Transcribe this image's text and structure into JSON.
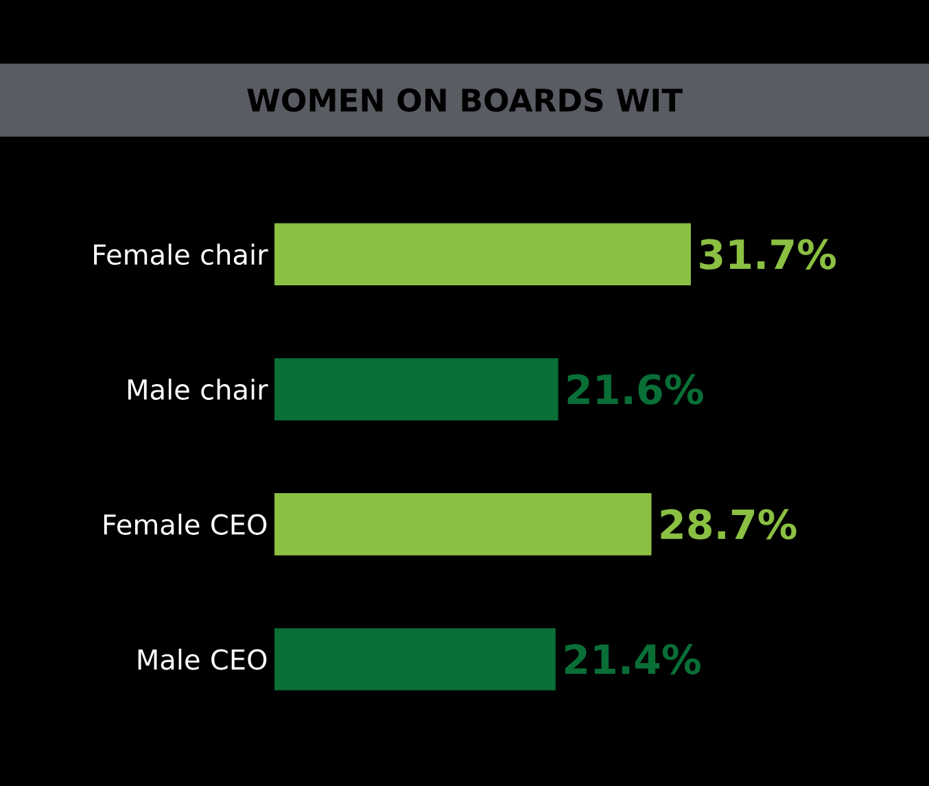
{
  "chart_data": {
    "type": "bar",
    "orientation": "horizontal",
    "title": "WOMEN ON BOARDS WIT",
    "categories": [
      "Female chair",
      "Male chair",
      "Female CEO",
      "Male CEO"
    ],
    "values": [
      31.7,
      21.6,
      28.7,
      21.4
    ],
    "value_labels": [
      "31.7%",
      "21.6%",
      "28.7%",
      "21.4%"
    ],
    "colors": [
      "#8bc043",
      "#0a6e37",
      "#8bc043",
      "#0a6e37"
    ]
  }
}
